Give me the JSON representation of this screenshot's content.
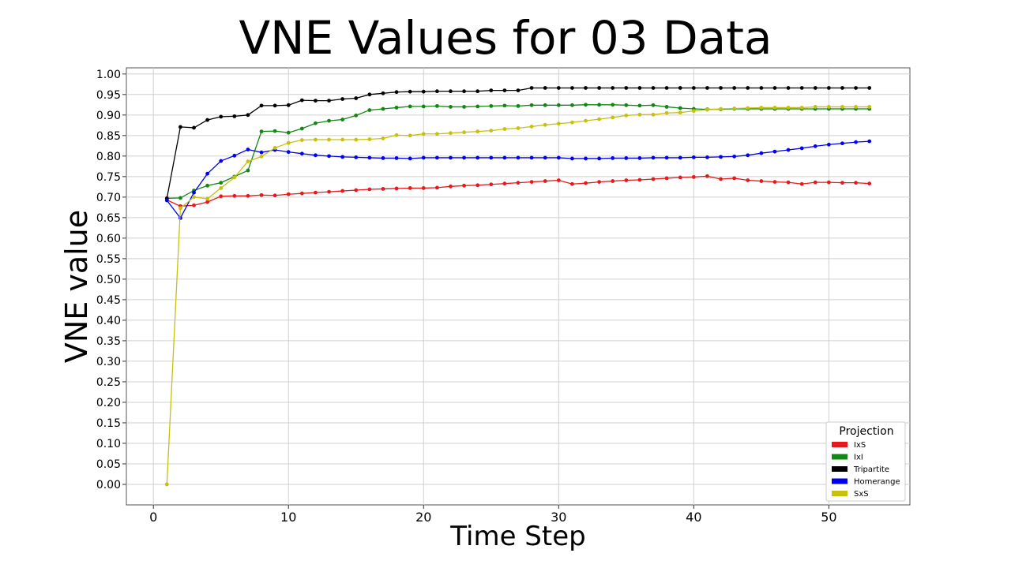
{
  "slide": {
    "title": "VNE Values for 03 Data"
  },
  "chart_data": {
    "type": "line",
    "title": "VNE Values for 03 Data",
    "xlabel": "Time Step",
    "ylabel": "VNE value",
    "xlim": [
      -2,
      56
    ],
    "ylim": [
      -0.05,
      1.015
    ],
    "xticks": [
      0,
      10,
      20,
      30,
      40,
      50
    ],
    "yticks": [
      0.0,
      0.05,
      0.1,
      0.15,
      0.2,
      0.25,
      0.3,
      0.35,
      0.4,
      0.45,
      0.5,
      0.55,
      0.6,
      0.65,
      0.7,
      0.75,
      0.8,
      0.85,
      0.9,
      0.95,
      1.0
    ],
    "grid": true,
    "legend": {
      "title": "Projection",
      "placement": "bottom-right"
    },
    "x": [
      1,
      2,
      3,
      4,
      5,
      6,
      7,
      8,
      9,
      10,
      11,
      12,
      13,
      14,
      15,
      16,
      17,
      18,
      19,
      20,
      21,
      22,
      23,
      24,
      25,
      26,
      27,
      28,
      29,
      30,
      31,
      32,
      33,
      34,
      35,
      36,
      37,
      38,
      39,
      40,
      41,
      42,
      43,
      44,
      45,
      46,
      47,
      48,
      49,
      50,
      51,
      52,
      53
    ],
    "series": [
      {
        "name": "IxS",
        "color": "#e41a1c",
        "values": [
          0.693,
          0.678,
          0.68,
          0.688,
          0.702,
          0.703,
          0.703,
          0.705,
          0.704,
          0.707,
          0.709,
          0.711,
          0.713,
          0.715,
          0.717,
          0.719,
          0.72,
          0.721,
          0.722,
          0.722,
          0.723,
          0.726,
          0.728,
          0.729,
          0.731,
          0.733,
          0.735,
          0.737,
          0.739,
          0.741,
          0.732,
          0.734,
          0.737,
          0.739,
          0.741,
          0.742,
          0.744,
          0.746,
          0.748,
          0.749,
          0.751,
          0.744,
          0.746,
          0.741,
          0.739,
          0.737,
          0.736,
          0.732,
          0.736,
          0.736,
          0.735,
          0.735,
          0.733
        ]
      },
      {
        "name": "IxI",
        "color": "#118811",
        "values": [
          0.697,
          0.698,
          0.716,
          0.728,
          0.735,
          0.75,
          0.765,
          0.86,
          0.861,
          0.857,
          0.867,
          0.88,
          0.886,
          0.889,
          0.899,
          0.912,
          0.915,
          0.918,
          0.921,
          0.921,
          0.922,
          0.92,
          0.92,
          0.921,
          0.922,
          0.923,
          0.922,
          0.924,
          0.924,
          0.924,
          0.924,
          0.925,
          0.925,
          0.925,
          0.924,
          0.923,
          0.924,
          0.92,
          0.917,
          0.915,
          0.914,
          0.914,
          0.915,
          0.915,
          0.915,
          0.915,
          0.915,
          0.915,
          0.915,
          0.915,
          0.915,
          0.915,
          0.915
        ]
      },
      {
        "name": "Tripartite",
        "color": "#000000",
        "values": [
          0.697,
          0.871,
          0.869,
          0.888,
          0.896,
          0.897,
          0.9,
          0.923,
          0.923,
          0.924,
          0.936,
          0.935,
          0.935,
          0.939,
          0.941,
          0.95,
          0.953,
          0.956,
          0.957,
          0.957,
          0.958,
          0.958,
          0.958,
          0.958,
          0.96,
          0.96,
          0.96,
          0.966,
          0.966,
          0.966,
          0.966,
          0.966,
          0.966,
          0.966,
          0.966,
          0.966,
          0.966,
          0.966,
          0.966,
          0.966,
          0.966,
          0.966,
          0.966,
          0.966,
          0.966,
          0.966,
          0.966,
          0.966,
          0.966,
          0.966,
          0.966,
          0.966,
          0.966
        ]
      },
      {
        "name": "Homerange",
        "color": "#0000ee",
        "values": [
          0.692,
          0.649,
          0.711,
          0.757,
          0.788,
          0.801,
          0.816,
          0.809,
          0.815,
          0.81,
          0.806,
          0.802,
          0.8,
          0.798,
          0.797,
          0.796,
          0.795,
          0.795,
          0.794,
          0.796,
          0.796,
          0.796,
          0.796,
          0.796,
          0.796,
          0.796,
          0.796,
          0.796,
          0.796,
          0.796,
          0.794,
          0.794,
          0.794,
          0.795,
          0.795,
          0.795,
          0.796,
          0.796,
          0.796,
          0.797,
          0.797,
          0.798,
          0.799,
          0.802,
          0.807,
          0.811,
          0.815,
          0.819,
          0.824,
          0.828,
          0.831,
          0.834,
          0.836
        ]
      },
      {
        "name": "SxS",
        "color": "#c8c010",
        "values": [
          0.0,
          0.673,
          0.7,
          0.696,
          0.722,
          0.748,
          0.787,
          0.799,
          0.82,
          0.832,
          0.839,
          0.84,
          0.84,
          0.84,
          0.84,
          0.841,
          0.843,
          0.851,
          0.85,
          0.854,
          0.854,
          0.856,
          0.858,
          0.86,
          0.862,
          0.866,
          0.868,
          0.872,
          0.876,
          0.879,
          0.882,
          0.886,
          0.89,
          0.894,
          0.899,
          0.901,
          0.901,
          0.905,
          0.906,
          0.91,
          0.913,
          0.915,
          0.916,
          0.917,
          0.918,
          0.918,
          0.918,
          0.918,
          0.92,
          0.92,
          0.92,
          0.92,
          0.92
        ]
      }
    ]
  }
}
